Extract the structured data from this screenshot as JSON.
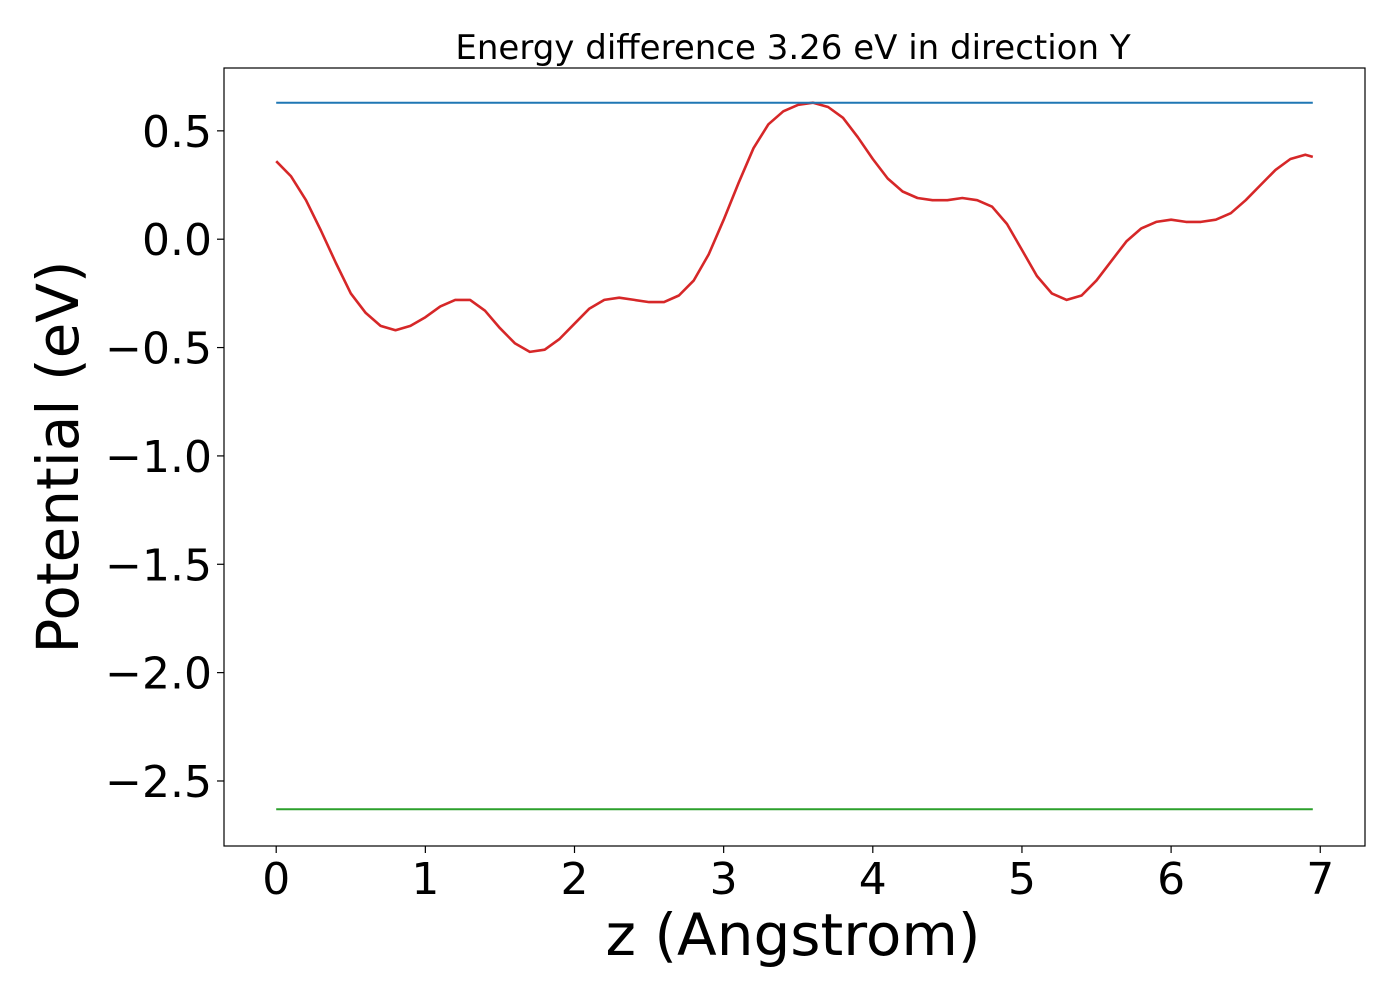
{
  "chart_data": {
    "type": "line",
    "title": "Energy difference 3.26 eV in direction Y",
    "xlabel": "z (Angstrom)",
    "ylabel": "Potential (eV)",
    "xlim": [
      -0.35,
      7.3
    ],
    "ylim": [
      -2.8,
      0.79
    ],
    "xticks": [
      0,
      1,
      2,
      3,
      4,
      5,
      6,
      7
    ],
    "xtick_labels": [
      "0",
      "1",
      "2",
      "3",
      "4",
      "5",
      "6",
      "7"
    ],
    "yticks": [
      0.5,
      0.0,
      -0.5,
      -1.0,
      -1.5,
      -2.0,
      -2.5
    ],
    "ytick_labels": [
      "0.5",
      "0.0",
      "−0.5",
      "−1.0",
      "−1.5",
      "−2.0",
      "−2.5"
    ],
    "grid": false,
    "series": [
      {
        "color": "#d62728",
        "x": [
          0.0,
          0.1,
          0.2,
          0.3,
          0.4,
          0.5,
          0.6,
          0.7,
          0.8,
          0.9,
          1.0,
          1.1,
          1.2,
          1.3,
          1.4,
          1.5,
          1.6,
          1.7,
          1.8,
          1.9,
          2.0,
          2.1,
          2.2,
          2.3,
          2.4,
          2.5,
          2.6,
          2.7,
          2.8,
          2.9,
          3.0,
          3.1,
          3.2,
          3.3,
          3.4,
          3.5,
          3.6,
          3.7,
          3.8,
          3.9,
          4.0,
          4.1,
          4.2,
          4.3,
          4.4,
          4.5,
          4.6,
          4.7,
          4.8,
          4.9,
          5.0,
          5.1,
          5.2,
          5.3,
          5.4,
          5.5,
          5.6,
          5.7,
          5.8,
          5.9,
          6.0,
          6.1,
          6.2,
          6.3,
          6.4,
          6.5,
          6.6,
          6.7,
          6.8,
          6.9,
          6.95
        ],
        "y": [
          0.36,
          0.29,
          0.18,
          0.04,
          -0.11,
          -0.25,
          -0.34,
          -0.4,
          -0.42,
          -0.4,
          -0.36,
          -0.31,
          -0.28,
          -0.28,
          -0.33,
          -0.41,
          -0.48,
          -0.52,
          -0.51,
          -0.46,
          -0.39,
          -0.32,
          -0.28,
          -0.27,
          -0.28,
          -0.29,
          -0.29,
          -0.26,
          -0.19,
          -0.07,
          0.09,
          0.26,
          0.42,
          0.53,
          0.59,
          0.62,
          0.63,
          0.61,
          0.56,
          0.47,
          0.37,
          0.28,
          0.22,
          0.19,
          0.18,
          0.18,
          0.19,
          0.18,
          0.15,
          0.07,
          -0.05,
          -0.17,
          -0.25,
          -0.28,
          -0.26,
          -0.19,
          -0.1,
          -0.01,
          0.05,
          0.08,
          0.09,
          0.08,
          0.08,
          0.09,
          0.12,
          0.18,
          0.25,
          0.32,
          0.37,
          0.39,
          0.38
        ]
      },
      {
        "color": "#1f77b4",
        "x": [
          0.0,
          6.95
        ],
        "y": [
          0.63,
          0.63
        ]
      },
      {
        "color": "#2ca02c",
        "x": [
          0.0,
          6.95
        ],
        "y": [
          -2.63,
          -2.63
        ]
      }
    ]
  }
}
